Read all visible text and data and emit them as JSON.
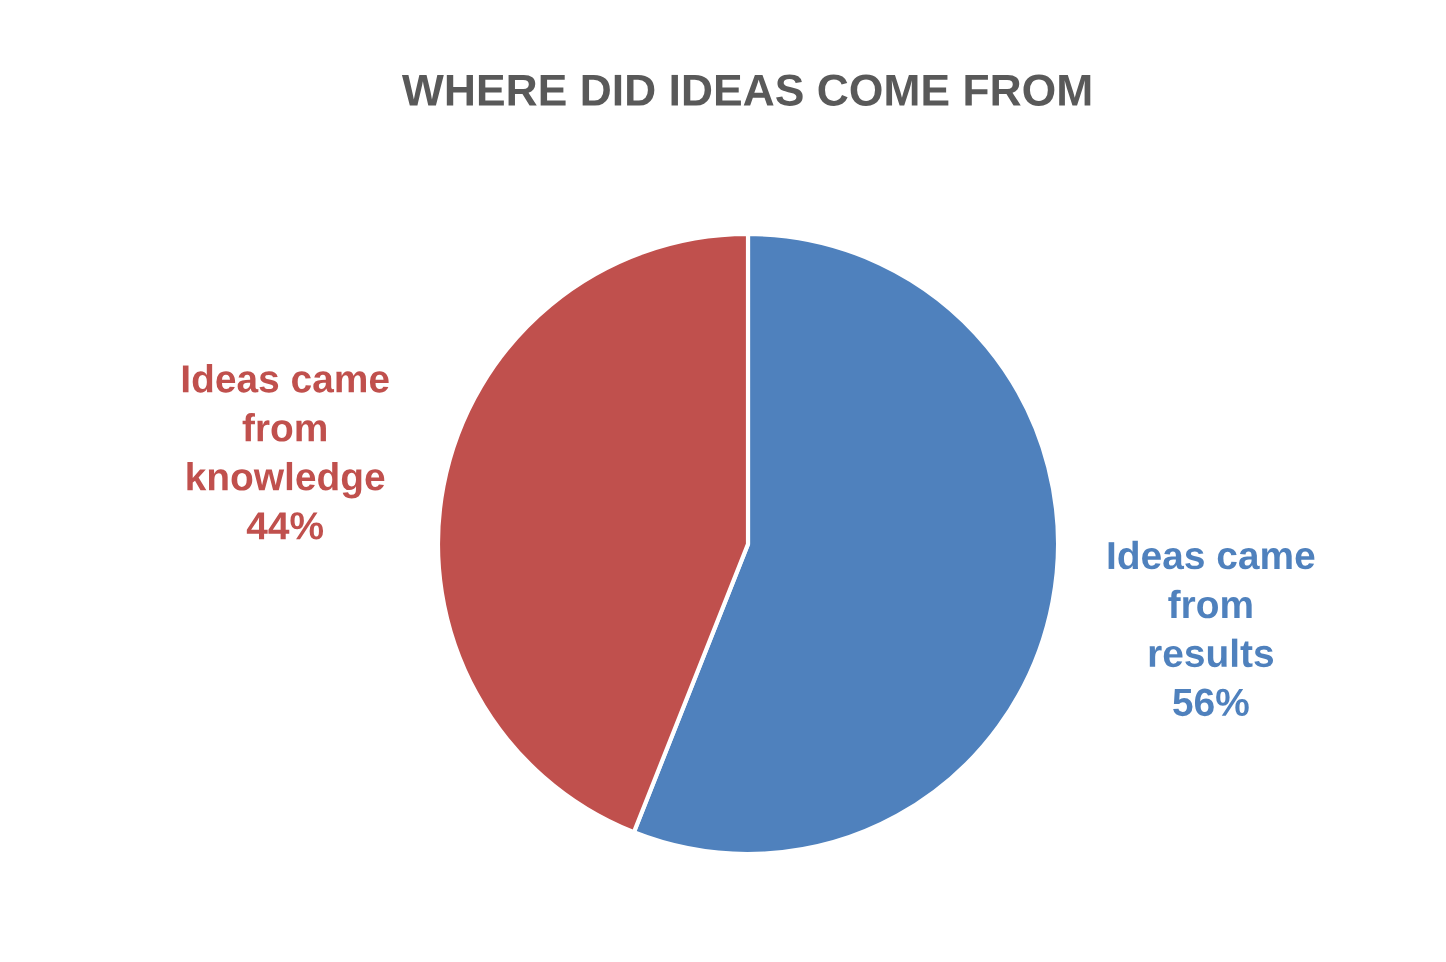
{
  "chart_data": {
    "type": "pie",
    "title": "WHERE DID IDEAS COME FROM",
    "categories": [
      "Ideas came\nfrom\nresults",
      "Ideas came\nfrom\nknowledge"
    ],
    "values": [
      56,
      44
    ],
    "colors": [
      "#4f81bd",
      "#c0504d"
    ],
    "value_labels": [
      "56%",
      "44%"
    ],
    "legend": false
  }
}
